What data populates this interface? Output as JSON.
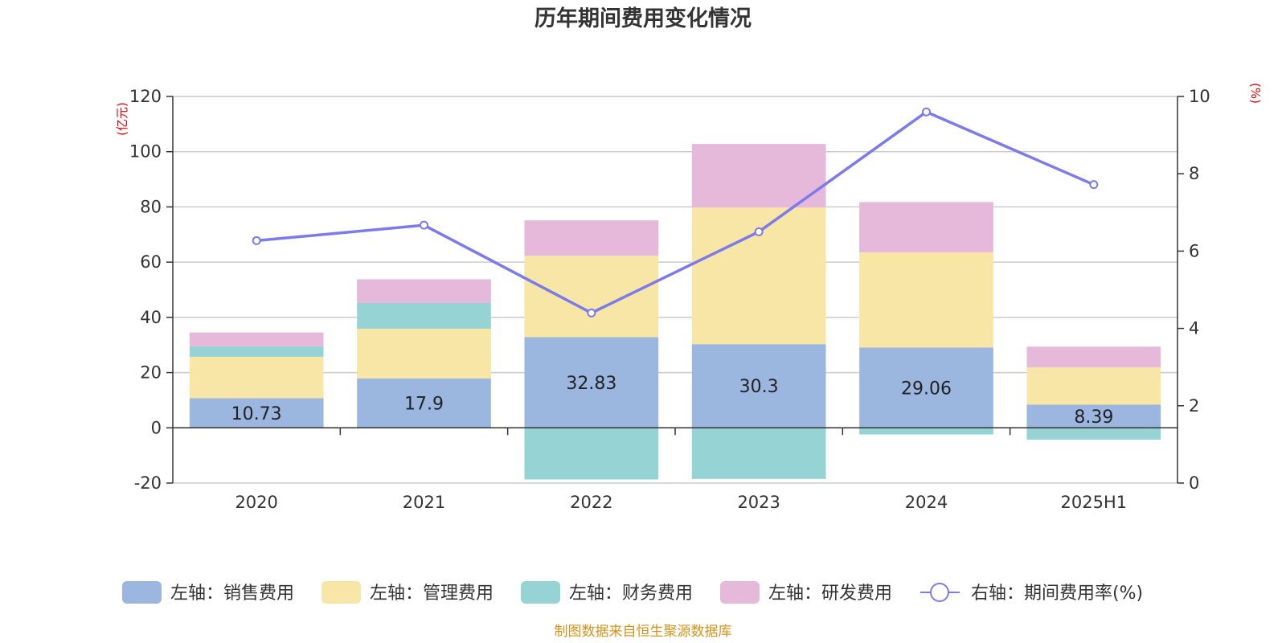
{
  "chart_data": {
    "type": "bar",
    "title": "历年期间费用变化情况",
    "categories": [
      "2020",
      "2021",
      "2022",
      "2023",
      "2024",
      "2025H1"
    ],
    "left_axis": {
      "unit": "(亿元)",
      "ylim": [
        -20,
        120
      ],
      "ticks": [
        -20,
        0,
        20,
        40,
        60,
        80,
        100,
        120
      ]
    },
    "right_axis": {
      "unit": "(%)",
      "ylim": [
        0,
        10
      ],
      "ticks": [
        0,
        2,
        4,
        6,
        8,
        10
      ]
    },
    "series": [
      {
        "name": "左轴：销售费用",
        "type": "bar",
        "axis": "left",
        "color": "#9bb7e0",
        "values": [
          10.73,
          17.9,
          32.83,
          30.3,
          29.06,
          8.39
        ]
      },
      {
        "name": "左轴：管理费用",
        "type": "bar",
        "axis": "left",
        "color": "#f7e6a6",
        "values": [
          15.0,
          18.0,
          29.5,
          49.5,
          34.5,
          13.5
        ]
      },
      {
        "name": "左轴：财务费用",
        "type": "bar",
        "axis": "left",
        "color": "#96d3d4",
        "values": [
          3.8,
          9.3,
          -18.7,
          -18.5,
          -2.4,
          -4.3
        ]
      },
      {
        "name": "左轴：研发费用",
        "type": "bar",
        "axis": "left",
        "color": "#e6b8d9",
        "values": [
          5.0,
          8.6,
          12.8,
          23.0,
          18.2,
          7.5
        ]
      },
      {
        "name": "右轴：期间费用率(%)",
        "type": "line",
        "axis": "right",
        "color": "#7b7bec",
        "values": [
          6.27,
          6.67,
          4.4,
          6.5,
          9.6,
          7.72
        ]
      }
    ],
    "data_labels": [
      "10.73",
      "17.9",
      "32.83",
      "30.3",
      "29.06",
      "8.39"
    ],
    "grid": true,
    "legend_position": "bottom"
  },
  "source_note": "制图数据来自恒生聚源数据库"
}
